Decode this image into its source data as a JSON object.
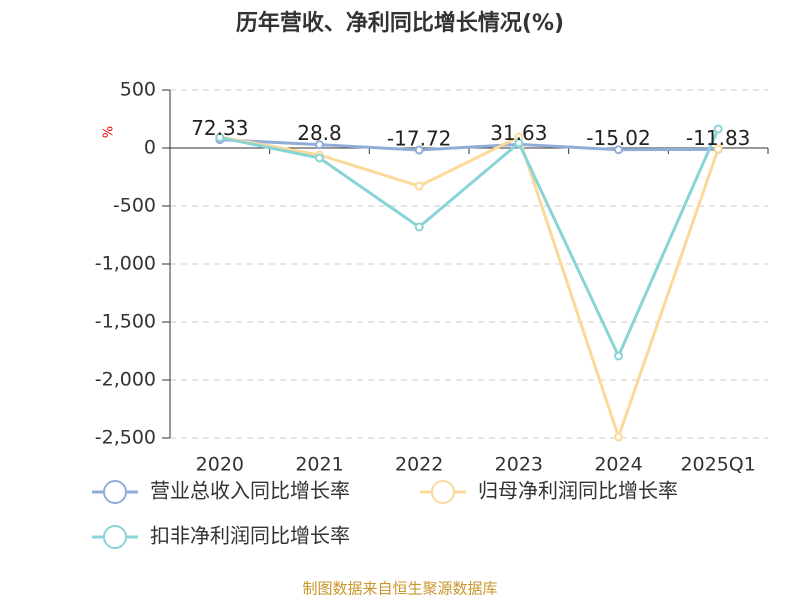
{
  "chart_data": {
    "type": "line",
    "title": "历年营收、净利同比增长情况(%)",
    "y_label": "%",
    "categories": [
      "2020",
      "2021",
      "2022",
      "2023",
      "2024",
      "2025Q1"
    ],
    "series": [
      {
        "name": "营业总收入同比增长率",
        "color": "#91acd9",
        "values": [
          72.33,
          28.8,
          -17.72,
          31.63,
          -15.02,
          -11.83
        ]
      },
      {
        "name": "归母净利润同比增长率",
        "color": "#fcd99a",
        "values": [
          95,
          -60,
          -328,
          95,
          -2491,
          -9
        ]
      },
      {
        "name": "扣非净利润同比增长率",
        "color": "#88d4d6",
        "values": [
          90,
          -86,
          -681,
          43,
          -1793,
          164
        ]
      }
    ],
    "ylim": [
      -2500,
      500
    ],
    "yticks": [
      500,
      0,
      -500,
      {
        "value": -1000,
        "label": "-1,000"
      },
      {
        "value": -1500,
        "label": "-1,500"
      },
      {
        "value": -2000,
        "label": "-2,000"
      },
      {
        "value": -2500,
        "label": "-2,500"
      }
    ],
    "grid": true,
    "source": "制图数据来自恒生聚源数据库"
  }
}
